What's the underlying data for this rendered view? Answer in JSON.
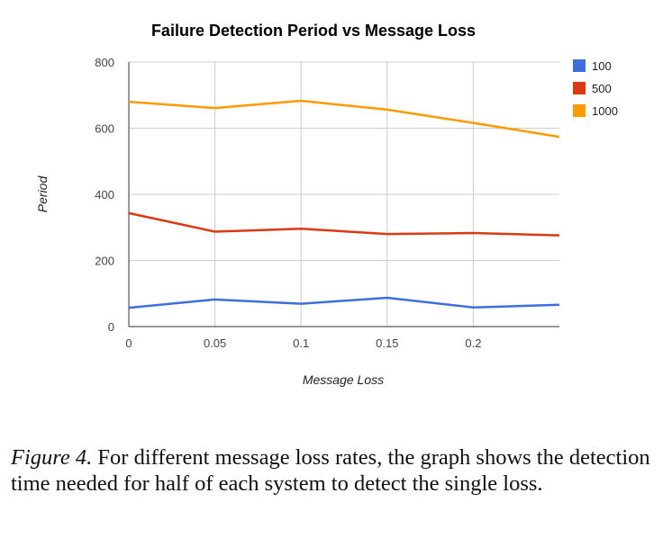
{
  "chart_data": {
    "type": "line",
    "title": "Failure Detection Period vs Message Loss",
    "xlabel": "Message Loss",
    "ylabel": "Period",
    "x": [
      0,
      0.05,
      0.1,
      0.15,
      0.2,
      0.25
    ],
    "x_ticks": [
      "0",
      "0.05",
      "0.1",
      "0.15",
      "0.2"
    ],
    "xlim": [
      0,
      0.25
    ],
    "ylim": [
      0,
      800
    ],
    "y_ticks": [
      "0",
      "200",
      "400",
      "600",
      "800"
    ],
    "grid": true,
    "legend": "right",
    "series": [
      {
        "name": "100",
        "color": "#3c6fdc",
        "values": [
          57,
          82,
          69,
          87,
          58,
          66
        ]
      },
      {
        "name": "500",
        "color": "#dc3912",
        "values": [
          343,
          287,
          296,
          280,
          283,
          276
        ]
      },
      {
        "name": "1000",
        "color": "#ff9900",
        "values": [
          680,
          661,
          683,
          656,
          616,
          574
        ]
      }
    ]
  },
  "caption": {
    "figure_label": "Figure 4.",
    "text": " For different message loss rates, the graph shows the detection time needed for half of each system to detect the single loss."
  }
}
